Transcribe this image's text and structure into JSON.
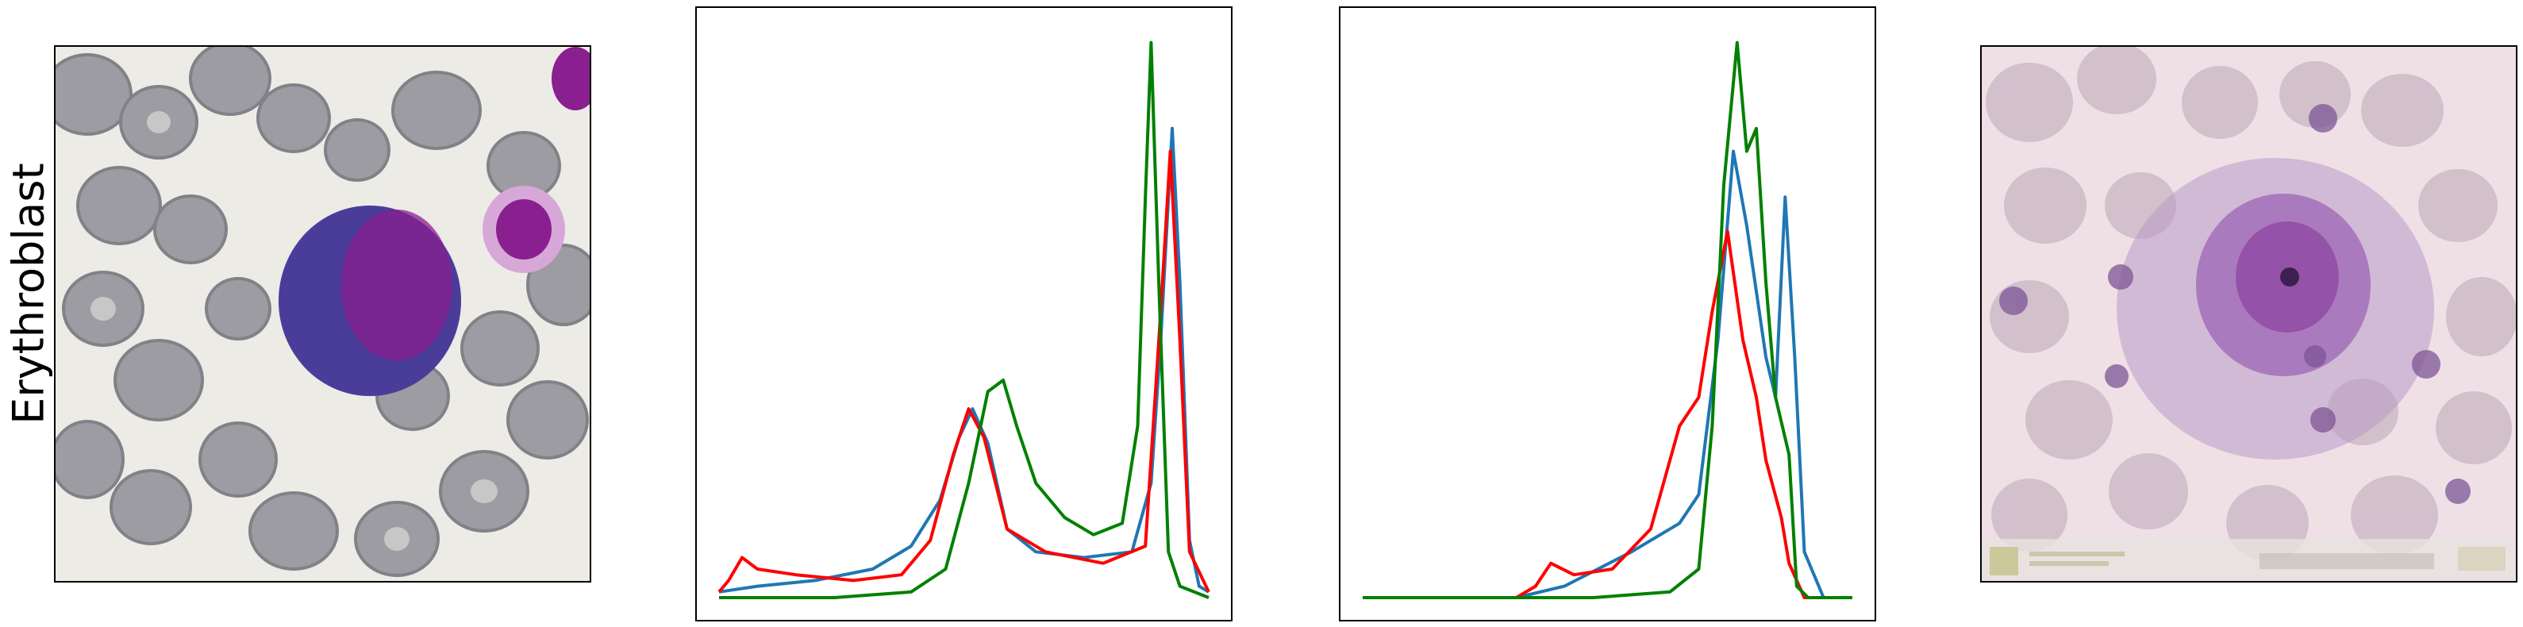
{
  "row_label": "Erythroblast",
  "panels": [
    {
      "kind": "image",
      "description_icon": "blood-smear-image"
    },
    {
      "kind": "histogram"
    },
    {
      "kind": "histogram"
    },
    {
      "kind": "image",
      "description_icon": "blood-smear-image-faded"
    }
  ],
  "colors": {
    "blue": "#1f77b4",
    "red": "#ff0000",
    "green": "#008000",
    "rbc": "#8f8f97",
    "nucleus": "#4a3d9a",
    "nucleus_mag": "#8a1f8f",
    "background_smear": "#ecebe6",
    "background_faded": "#efe0e6"
  },
  "chart_data": [
    {
      "type": "line",
      "title": "",
      "xlabel": "",
      "ylabel": "",
      "xlim": [
        0,
        255
      ],
      "ylim": [
        0,
        1
      ],
      "series": [
        {
          "color": "#1f77b4",
          "points": [
            [
              0,
              0.01
            ],
            [
              20,
              0.02
            ],
            [
              50,
              0.03
            ],
            [
              80,
              0.05
            ],
            [
              100,
              0.09
            ],
            [
              115,
              0.17
            ],
            [
              125,
              0.28
            ],
            [
              132,
              0.33
            ],
            [
              140,
              0.27
            ],
            [
              150,
              0.12
            ],
            [
              165,
              0.08
            ],
            [
              190,
              0.07
            ],
            [
              215,
              0.08
            ],
            [
              225,
              0.2
            ],
            [
              230,
              0.45
            ],
            [
              236,
              0.82
            ],
            [
              240,
              0.55
            ],
            [
              245,
              0.1
            ],
            [
              250,
              0.02
            ],
            [
              255,
              0.01
            ]
          ]
        },
        {
          "color": "#ff0000",
          "points": [
            [
              0,
              0.01
            ],
            [
              5,
              0.03
            ],
            [
              12,
              0.07
            ],
            [
              20,
              0.05
            ],
            [
              40,
              0.04
            ],
            [
              70,
              0.03
            ],
            [
              95,
              0.04
            ],
            [
              110,
              0.1
            ],
            [
              122,
              0.25
            ],
            [
              130,
              0.33
            ],
            [
              138,
              0.28
            ],
            [
              150,
              0.12
            ],
            [
              170,
              0.08
            ],
            [
              200,
              0.06
            ],
            [
              222,
              0.09
            ],
            [
              230,
              0.5
            ],
            [
              235,
              0.78
            ],
            [
              240,
              0.45
            ],
            [
              245,
              0.08
            ],
            [
              255,
              0.01
            ]
          ]
        },
        {
          "color": "#008000",
          "points": [
            [
              0,
              0.0
            ],
            [
              60,
              0.0
            ],
            [
              100,
              0.01
            ],
            [
              118,
              0.05
            ],
            [
              130,
              0.2
            ],
            [
              140,
              0.36
            ],
            [
              148,
              0.38
            ],
            [
              155,
              0.3
            ],
            [
              165,
              0.2
            ],
            [
              180,
              0.14
            ],
            [
              195,
              0.11
            ],
            [
              210,
              0.13
            ],
            [
              218,
              0.3
            ],
            [
              222,
              0.7
            ],
            [
              225,
              0.97
            ],
            [
              229,
              0.55
            ],
            [
              234,
              0.08
            ],
            [
              240,
              0.02
            ],
            [
              255,
              0.0
            ]
          ]
        }
      ]
    },
    {
      "type": "line",
      "title": "",
      "xlabel": "",
      "ylabel": "",
      "xlim": [
        0,
        255
      ],
      "ylim": [
        0,
        1
      ],
      "series": [
        {
          "color": "#1f77b4",
          "points": [
            [
              0,
              0.0
            ],
            [
              80,
              0.0
            ],
            [
              105,
              0.02
            ],
            [
              140,
              0.08
            ],
            [
              165,
              0.13
            ],
            [
              175,
              0.18
            ],
            [
              185,
              0.45
            ],
            [
              193,
              0.78
            ],
            [
              200,
              0.65
            ],
            [
              210,
              0.42
            ],
            [
              215,
              0.35
            ],
            [
              220,
              0.7
            ],
            [
              225,
              0.42
            ],
            [
              230,
              0.08
            ],
            [
              240,
              0.0
            ],
            [
              255,
              0.0
            ]
          ]
        },
        {
          "color": "#ff0000",
          "points": [
            [
              0,
              0.0
            ],
            [
              80,
              0.0
            ],
            [
              90,
              0.02
            ],
            [
              98,
              0.06
            ],
            [
              110,
              0.04
            ],
            [
              130,
              0.05
            ],
            [
              150,
              0.12
            ],
            [
              165,
              0.3
            ],
            [
              175,
              0.35
            ],
            [
              182,
              0.5
            ],
            [
              190,
              0.64
            ],
            [
              198,
              0.45
            ],
            [
              205,
              0.35
            ],
            [
              210,
              0.24
            ],
            [
              218,
              0.14
            ],
            [
              222,
              0.06
            ],
            [
              230,
              0.0
            ],
            [
              255,
              0.0
            ]
          ]
        },
        {
          "color": "#008000",
          "points": [
            [
              0,
              0.0
            ],
            [
              120,
              0.0
            ],
            [
              160,
              0.01
            ],
            [
              175,
              0.05
            ],
            [
              182,
              0.3
            ],
            [
              188,
              0.72
            ],
            [
              195,
              0.97
            ],
            [
              200,
              0.78
            ],
            [
              205,
              0.82
            ],
            [
              210,
              0.55
            ],
            [
              215,
              0.35
            ],
            [
              222,
              0.25
            ],
            [
              226,
              0.02
            ],
            [
              232,
              0.0
            ],
            [
              255,
              0.0
            ]
          ]
        }
      ]
    }
  ]
}
